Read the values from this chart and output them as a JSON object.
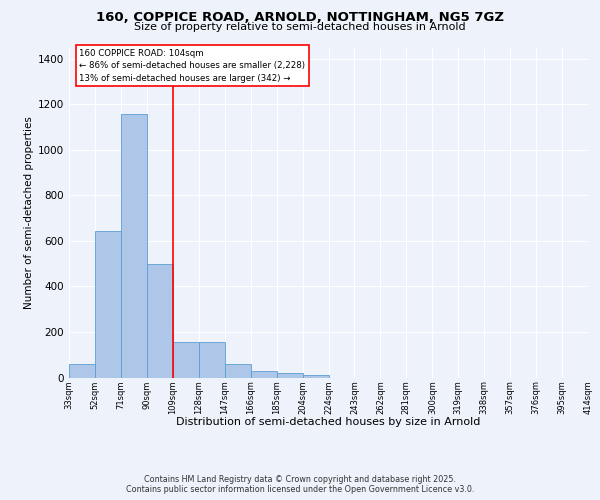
{
  "title1": "160, COPPICE ROAD, ARNOLD, NOTTINGHAM, NG5 7GZ",
  "title2": "Size of property relative to semi-detached houses in Arnold",
  "xlabel": "Distribution of semi-detached houses by size in Arnold",
  "ylabel": "Number of semi-detached properties",
  "bar_values": [
    60,
    645,
    1160,
    500,
    155,
    155,
    60,
    30,
    20,
    10,
    0,
    0,
    0,
    0,
    0,
    0,
    0,
    0,
    0,
    0
  ],
  "bar_labels": [
    "33sqm",
    "52sqm",
    "71sqm",
    "90sqm",
    "109sqm",
    "128sqm",
    "147sqm",
    "166sqm",
    "185sqm",
    "204sqm",
    "224sqm",
    "243sqm",
    "262sqm",
    "281sqm",
    "300sqm",
    "319sqm",
    "338sqm",
    "357sqm",
    "376sqm",
    "395sqm",
    "414sqm"
  ],
  "bar_color": "#aec6e8",
  "bar_edge_color": "#5a9fd4",
  "pct_smaller": 86,
  "n_smaller": 2228,
  "pct_larger": 13,
  "n_larger": 342,
  "vline_x": 3.5,
  "ylim": [
    0,
    1450
  ],
  "yticks": [
    0,
    200,
    400,
    600,
    800,
    1000,
    1200,
    1400
  ],
  "background_color": "#eef2fa",
  "grid_color": "#ffffff",
  "footer": "Contains HM Land Registry data © Crown copyright and database right 2025.\nContains public sector information licensed under the Open Government Licence v3.0."
}
